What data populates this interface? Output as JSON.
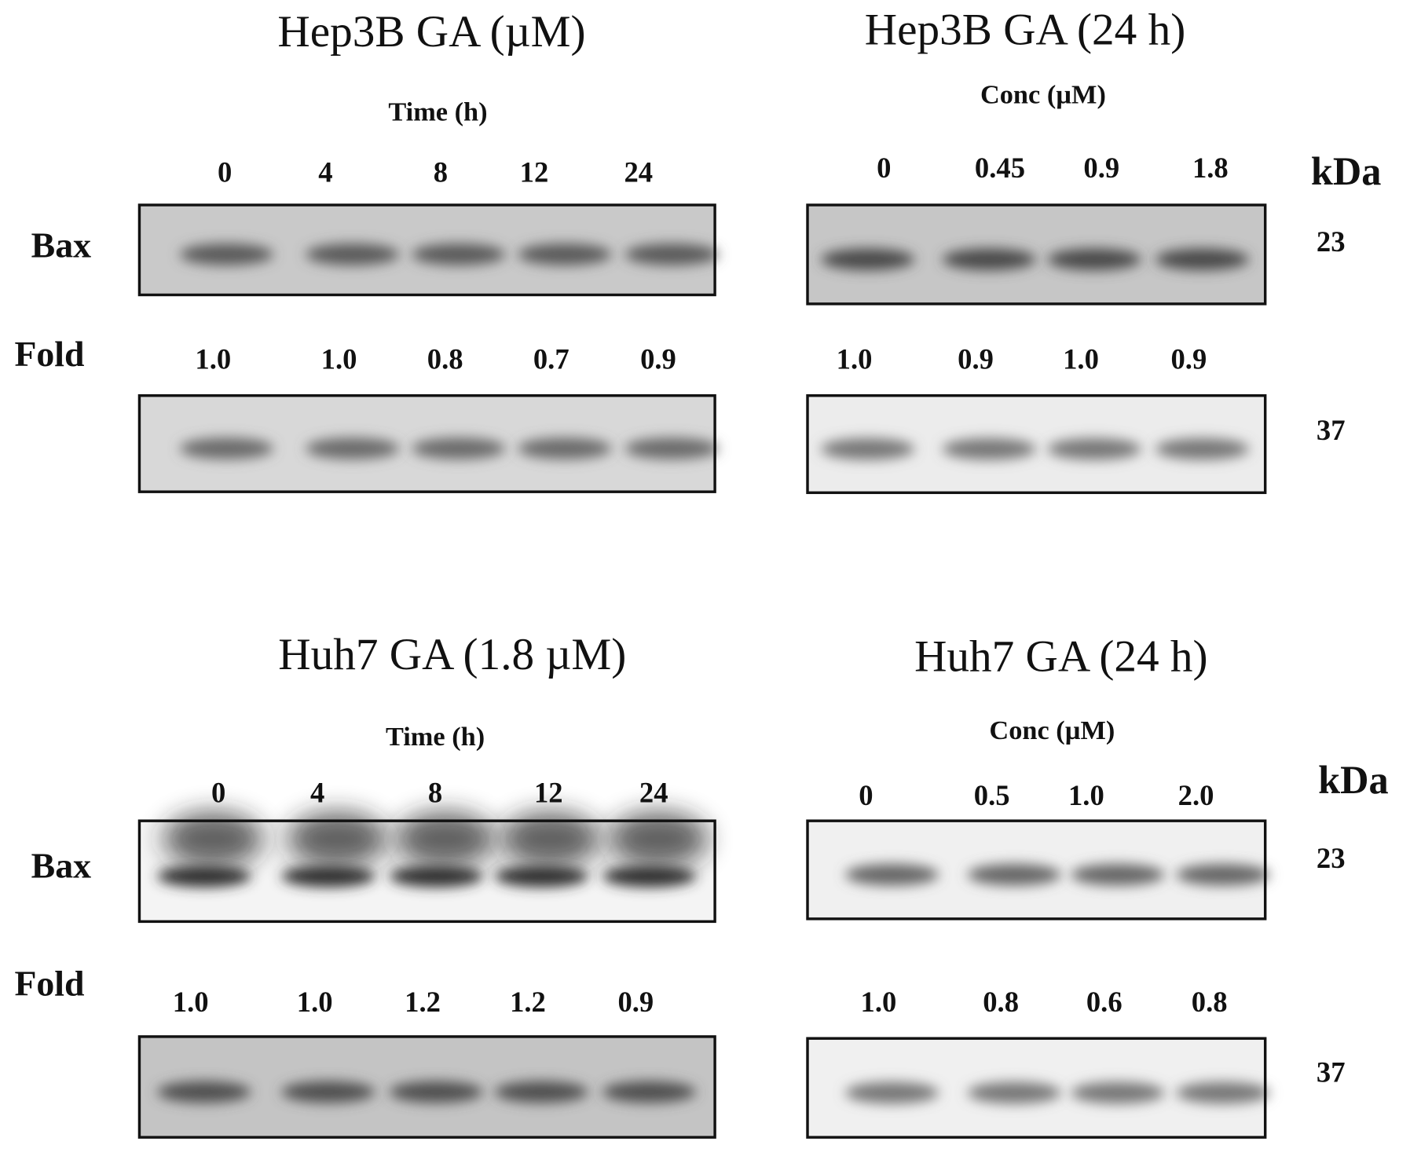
{
  "panels": [
    {
      "title": "Hep3B GA (µM)",
      "axis_label": "Time (h)",
      "lanes": [
        "0",
        "4",
        "8",
        "12",
        "24"
      ],
      "folds": [
        "1.0",
        "1.0",
        "0.8",
        "0.7",
        "0.9"
      ],
      "row_labels": [
        "Bax",
        "Fold"
      ]
    },
    {
      "title": "Hep3B GA (24 h)",
      "axis_label": "Conc (µM)",
      "lanes": [
        "0",
        "0.45",
        "0.9",
        "1.8"
      ],
      "folds": [
        "1.0",
        "0.9",
        "1.0",
        "0.9"
      ],
      "kda_label": "kDa",
      "markers": [
        "23",
        "37"
      ]
    },
    {
      "title": "Huh7 GA (1.8 µM)",
      "axis_label": "Time (h)",
      "lanes": [
        "0",
        "4",
        "8",
        "12",
        "24"
      ],
      "folds": [
        "1.0",
        "1.0",
        "1.2",
        "1.2",
        "0.9"
      ],
      "row_labels": [
        "Bax",
        "Fold"
      ]
    },
    {
      "title": "Huh7 GA (24 h)",
      "axis_label": "Conc (µM)",
      "lanes": [
        "0",
        "0.5",
        "1.0",
        "2.0"
      ],
      "folds": [
        "1.0",
        "0.8",
        "0.6",
        "0.8"
      ],
      "kda_label": "kDa",
      "markers": [
        "23",
        "37"
      ]
    }
  ]
}
